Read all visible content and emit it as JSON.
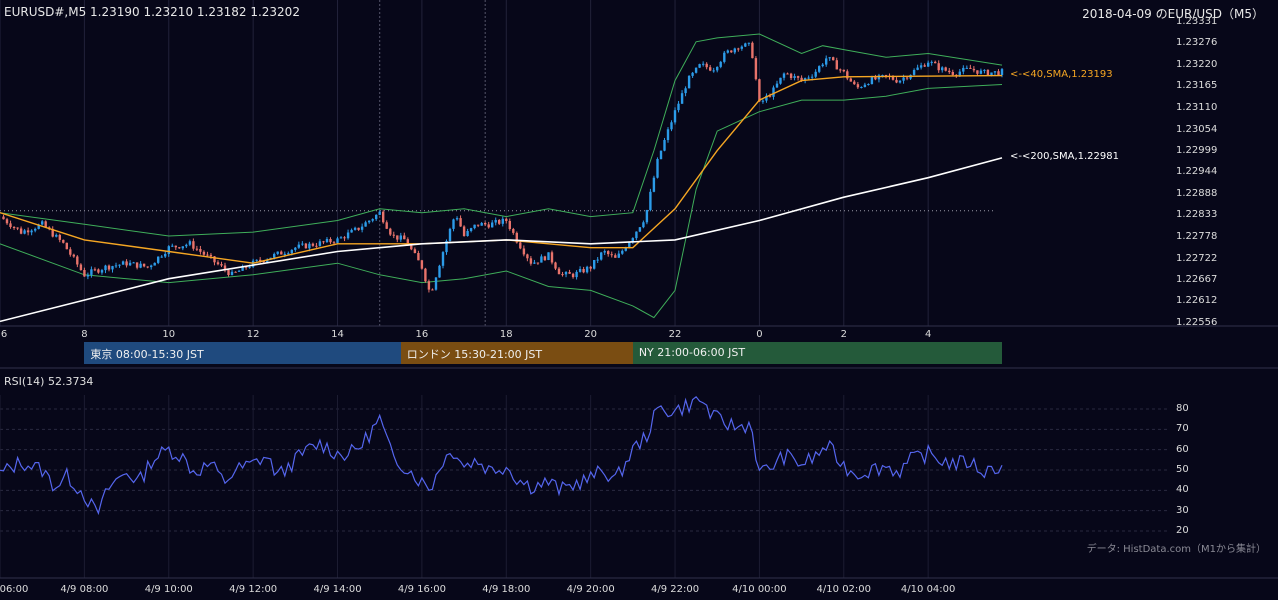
{
  "header": {
    "symbol_line": "EURUSD#,M5 1.23190 1.23210 1.23182 1.23202",
    "date_title": "2018-04-09 のEUR/USD（M5）"
  },
  "sessions": [
    {
      "label": "東京 08:00-15:30 JST",
      "color": "#1f4a7e"
    },
    {
      "label": "ロンドン 15:30-21:00 JST",
      "color": "#7a4d12"
    },
    {
      "label": "NY 21:00-06:00 JST",
      "color": "#245a3a"
    }
  ],
  "indicators": {
    "sma40_label": "<-<40,SMA,1.23193",
    "sma200_label": "<-<200,SMA,1.22981",
    "sma40_color": "#f5a623",
    "sma200_color": "#ffffff",
    "rsi_title": "RSI(14) 52.3734"
  },
  "credit": "データ: HistData.com（M1から集計）",
  "chart_data": [
    {
      "type": "candlestick",
      "title": "EURUSD#,M5",
      "y_ticks": [
        "1.23331",
        "1.23276",
        "1.23220",
        "1.23165",
        "1.23110",
        "1.23054",
        "1.22999",
        "1.22944",
        "1.22888",
        "1.22833",
        "1.22778",
        "1.22722",
        "1.22667",
        "1.22612",
        "1.22556"
      ],
      "ylim": [
        1.22556,
        1.23331
      ],
      "x_ticks": [
        "6",
        "8",
        "10",
        "12",
        "14",
        "16",
        "18",
        "20",
        "22",
        "0",
        "2",
        "4"
      ],
      "grid": true,
      "reference_line": 1.22845,
      "series": [
        {
          "name": "40,SMA",
          "last": 1.23193,
          "color": "#f5a623",
          "points": [
            [
              6,
              1.2284
            ],
            [
              8,
              1.2277
            ],
            [
              10,
              1.2274
            ],
            [
              12,
              1.2271
            ],
            [
              14,
              1.2276
            ],
            [
              16,
              1.2276
            ],
            [
              18,
              1.2277
            ],
            [
              20,
              1.2275
            ],
            [
              21,
              1.2275
            ],
            [
              22,
              1.2285
            ],
            [
              23,
              1.23
            ],
            [
              24,
              1.2313
            ],
            [
              25,
              1.2318
            ],
            [
              26,
              1.2319
            ],
            [
              29.75,
              1.23193
            ]
          ]
        },
        {
          "name": "200,SMA",
          "last": 1.22981,
          "color": "#ffffff",
          "points": [
            [
              6,
              1.2256
            ],
            [
              10,
              1.2267
            ],
            [
              14,
              1.2274
            ],
            [
              16,
              1.2276
            ],
            [
              18,
              1.2277
            ],
            [
              20,
              1.2276
            ],
            [
              22,
              1.2277
            ],
            [
              24,
              1.2282
            ],
            [
              26,
              1.2288
            ],
            [
              28,
              1.2293
            ],
            [
              29.75,
              1.22981
            ]
          ]
        }
      ],
      "bollinger": {
        "upper": [
          [
            6,
            1.2284
          ],
          [
            8,
            1.2281
          ],
          [
            10,
            1.2278
          ],
          [
            12,
            1.2279
          ],
          [
            14,
            1.2282
          ],
          [
            15,
            1.2285
          ],
          [
            16,
            1.2284
          ],
          [
            17,
            1.2285
          ],
          [
            18,
            1.2283
          ],
          [
            19,
            1.2285
          ],
          [
            20,
            1.2283
          ],
          [
            21,
            1.2284
          ],
          [
            21.5,
            1.23
          ],
          [
            22,
            1.2318
          ],
          [
            22.5,
            1.2328
          ],
          [
            23,
            1.2329
          ],
          [
            24,
            1.233
          ],
          [
            25,
            1.2325
          ],
          [
            25.5,
            1.2327
          ],
          [
            26,
            1.2326
          ],
          [
            27,
            1.2324
          ],
          [
            28,
            1.2325
          ],
          [
            29.75,
            1.2322
          ]
        ],
        "lower": [
          [
            6,
            1.2276
          ],
          [
            8,
            1.2268
          ],
          [
            10,
            1.2266
          ],
          [
            12,
            1.2268
          ],
          [
            14,
            1.2271
          ],
          [
            15,
            1.2268
          ],
          [
            16,
            1.2266
          ],
          [
            17,
            1.2267
          ],
          [
            18,
            1.2269
          ],
          [
            19,
            1.2265
          ],
          [
            20,
            1.2264
          ],
          [
            21,
            1.226
          ],
          [
            21.5,
            1.2257
          ],
          [
            22,
            1.2264
          ],
          [
            22.5,
            1.229
          ],
          [
            23,
            1.2305
          ],
          [
            24,
            1.231
          ],
          [
            25,
            1.2313
          ],
          [
            26,
            1.2313
          ],
          [
            27,
            1.2314
          ],
          [
            28,
            1.2316
          ],
          [
            29.75,
            1.2317
          ]
        ]
      },
      "close_path": [
        [
          6,
          1.2283
        ],
        [
          6.5,
          1.2279
        ],
        [
          7,
          1.2281
        ],
        [
          7.5,
          1.2276
        ],
        [
          8,
          1.2268
        ],
        [
          8.5,
          1.227
        ],
        [
          9,
          1.2271
        ],
        [
          9.5,
          1.227
        ],
        [
          10,
          1.2275
        ],
        [
          10.5,
          1.2276
        ],
        [
          11,
          1.2272
        ],
        [
          11.5,
          1.2268
        ],
        [
          12,
          1.2271
        ],
        [
          12.5,
          1.2273
        ],
        [
          13,
          1.2275
        ],
        [
          13.5,
          1.2276
        ],
        [
          14,
          1.2277
        ],
        [
          14.5,
          1.228
        ],
        [
          15,
          1.2284
        ],
        [
          15.3,
          1.2278
        ],
        [
          15.6,
          1.2277
        ],
        [
          16,
          1.227
        ],
        [
          16.2,
          1.2263
        ],
        [
          16.5,
          1.2274
        ],
        [
          16.8,
          1.2284
        ],
        [
          17,
          1.2278
        ],
        [
          17.3,
          1.2281
        ],
        [
          17.6,
          1.2281
        ],
        [
          18,
          1.2282
        ],
        [
          18.3,
          1.2276
        ],
        [
          18.6,
          1.2271
        ],
        [
          19,
          1.2273
        ],
        [
          19.3,
          1.2268
        ],
        [
          19.6,
          1.2268
        ],
        [
          20,
          1.227
        ],
        [
          20.3,
          1.2274
        ],
        [
          20.6,
          1.2272
        ],
        [
          21,
          1.2278
        ],
        [
          21.3,
          1.2283
        ],
        [
          21.6,
          1.2298
        ],
        [
          22,
          1.231
        ],
        [
          22.3,
          1.2318
        ],
        [
          22.6,
          1.2322
        ],
        [
          22.9,
          1.2321
        ],
        [
          23.2,
          1.2325
        ],
        [
          23.5,
          1.2327
        ],
        [
          23.8,
          1.2327
        ],
        [
          24,
          1.2312
        ],
        [
          24.3,
          1.2315
        ],
        [
          24.6,
          1.232
        ],
        [
          25,
          1.2318
        ],
        [
          25.3,
          1.232
        ],
        [
          25.6,
          1.2324
        ],
        [
          26,
          1.232
        ],
        [
          26.3,
          1.2316
        ],
        [
          26.6,
          1.2318
        ],
        [
          27,
          1.2319
        ],
        [
          27.3,
          1.2318
        ],
        [
          27.6,
          1.232
        ],
        [
          28,
          1.2323
        ],
        [
          28.3,
          1.2321
        ],
        [
          28.6,
          1.232
        ],
        [
          29,
          1.2321
        ],
        [
          29.3,
          1.232
        ],
        [
          29.75,
          1.23202
        ]
      ]
    },
    {
      "type": "line",
      "title": "RSI(14) 52.3734",
      "y_ticks": [
        20,
        30,
        40,
        50,
        60,
        70,
        80
      ],
      "ylim": [
        20,
        85
      ],
      "x_ticks": [
        "06:00",
        "4/9 08:00",
        "4/9 10:00",
        "4/9 12:00",
        "4/9 14:00",
        "4/9 16:00",
        "4/9 18:00",
        "4/9 20:00",
        "4/9 22:00",
        "4/10 00:00",
        "4/10 02:00",
        "4/10 04:00"
      ],
      "series": [
        {
          "name": "RSI(14)",
          "color": "#5566ee",
          "points": [
            [
              6,
              48
            ],
            [
              6.5,
              54
            ],
            [
              7,
              50
            ],
            [
              7.3,
              42
            ],
            [
              7.6,
              47
            ],
            [
              8,
              38
            ],
            [
              8.3,
              28
            ],
            [
              8.6,
              42
            ],
            [
              9,
              49
            ],
            [
              9.3,
              44
            ],
            [
              9.6,
              55
            ],
            [
              10,
              60
            ],
            [
              10.3,
              57
            ],
            [
              10.6,
              49
            ],
            [
              11,
              53
            ],
            [
              11.3,
              44
            ],
            [
              11.6,
              50
            ],
            [
              12,
              53
            ],
            [
              12.3,
              57
            ],
            [
              12.6,
              47
            ],
            [
              13,
              55
            ],
            [
              13.3,
              60
            ],
            [
              13.6,
              63
            ],
            [
              14,
              58
            ],
            [
              14.3,
              58
            ],
            [
              14.6,
              63
            ],
            [
              15,
              75
            ],
            [
              15.3,
              56
            ],
            [
              15.6,
              52
            ],
            [
              16,
              44
            ],
            [
              16.2,
              41
            ],
            [
              16.5,
              55
            ],
            [
              16.8,
              60
            ],
            [
              17,
              52
            ],
            [
              17.3,
              55
            ],
            [
              17.6,
              50
            ],
            [
              18,
              52
            ],
            [
              18.3,
              45
            ],
            [
              18.6,
              42
            ],
            [
              19,
              44
            ],
            [
              19.3,
              40
            ],
            [
              19.6,
              43
            ],
            [
              20,
              46
            ],
            [
              20.3,
              50
            ],
            [
              20.6,
              45
            ],
            [
              21,
              60
            ],
            [
              21.3,
              66
            ],
            [
              21.6,
              80
            ],
            [
              22,
              79
            ],
            [
              22.3,
              82
            ],
            [
              22.6,
              85
            ],
            [
              22.9,
              76
            ],
            [
              23.2,
              73
            ],
            [
              23.5,
              71
            ],
            [
              23.8,
              73
            ],
            [
              24,
              48
            ],
            [
              24.3,
              52
            ],
            [
              24.6,
              57
            ],
            [
              25,
              53
            ],
            [
              25.3,
              56
            ],
            [
              25.6,
              62
            ],
            [
              26,
              52
            ],
            [
              26.3,
              48
            ],
            [
              26.6,
              50
            ],
            [
              27,
              52
            ],
            [
              27.3,
              49
            ],
            [
              27.6,
              55
            ],
            [
              28,
              58
            ],
            [
              28.3,
              55
            ],
            [
              28.6,
              53
            ],
            [
              29,
              54
            ],
            [
              29.3,
              49
            ],
            [
              29.75,
              52.3734
            ]
          ]
        }
      ]
    }
  ]
}
